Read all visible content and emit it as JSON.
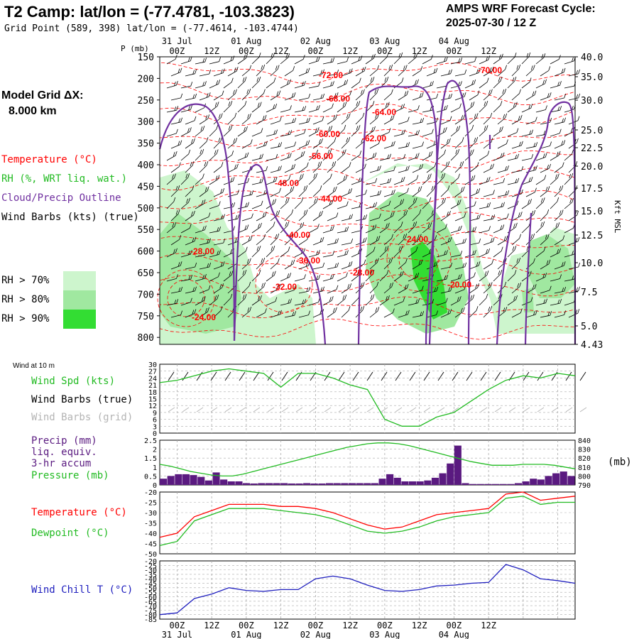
{
  "header": {
    "title": "T2 Camp:  lat/lon = (-77.4781, -103.3823)",
    "subtitle": "Grid Point (589, 398) lat/lon = (-77.4614, -103.4744)",
    "cycle_line1": "AMPS WRF Forecast Cycle:",
    "cycle_line2": "2025-07-30 / 12  Z"
  },
  "sidebar": {
    "model_grid_line1": "Model Grid ΔX:",
    "model_grid_line2": "8.000 km",
    "legend_temperature": "Temperature (°C)",
    "legend_rh": "RH (%, WRT liq. wat.)",
    "legend_cloud": "Cloud/Precip Outline",
    "legend_wind": "Wind Barbs (kts) (true)",
    "rh_70": "RH > 70%",
    "rh_80": "RH > 80%",
    "rh_90": "RH > 90%"
  },
  "colors": {
    "temperature": "#ff0000",
    "rh70": "#cdf5cd",
    "rh80": "#a0e8a0",
    "rh90": "#33dd33",
    "cloud": "#7030a0",
    "windspd": "#22bb22",
    "windchill": "#1e1ebe",
    "precip": "#5a1a80",
    "pressure": "#22bb22",
    "dewpoint": "#22bb22",
    "grid": "#aaaaaa"
  },
  "time_axis": {
    "date_labels": [
      "31 Jul",
      "01 Aug",
      "02 Aug",
      "03 Aug",
      "04 Aug"
    ],
    "hour_labels": [
      "00Z",
      "12Z",
      "00Z",
      "12Z",
      "00Z",
      "12Z",
      "00Z",
      "12Z",
      "00Z",
      "12Z"
    ]
  },
  "chart_data": [
    {
      "type": "heatmap",
      "panel": "cross_section",
      "ylabel_left": "P (mb)",
      "ylabel_right": "Kft MSL",
      "pressure_ticks": [
        "150",
        "200",
        "250",
        "300",
        "350",
        "400",
        "450",
        "500",
        "550",
        "600",
        "650",
        "700",
        "750",
        "800"
      ],
      "height_ticks": [
        "40.0",
        "35.0",
        "30.0",
        "25.0",
        "22.5",
        "20.0",
        "17.5",
        "15.0",
        "12.5",
        "10.0",
        "7.5",
        "5.0",
        "4.43"
      ],
      "temperature_labels": [
        "-72.00",
        "-70.00",
        "-68.00",
        "-64.00",
        "-60.00",
        "-62.00",
        "-56.00",
        "-48.00",
        "-44.00",
        "-40.00",
        "-36.00",
        "-28.00",
        "-28.00",
        "-32.00",
        "-24.00",
        "-24.00",
        "-20.00"
      ]
    },
    {
      "type": "line",
      "panel": "wind",
      "title": "Wind at 10 m",
      "series_label": "Wind Spd (kts)",
      "barbs_true_label": "Wind Barbs (true)",
      "barbs_grid_label": "Wind Barbs (grid)",
      "y_ticks": [
        "30",
        "27",
        "24",
        "21",
        "18",
        "15",
        "12",
        "9",
        "6",
        "3",
        "0"
      ],
      "ylim": [
        0,
        30
      ],
      "x_hours": [
        0,
        6,
        12,
        18,
        24,
        30,
        36,
        42,
        48,
        54,
        60,
        66,
        72,
        78,
        84,
        90,
        96,
        102,
        108,
        114,
        120,
        126,
        132,
        138,
        144
      ],
      "values": [
        22,
        23,
        25,
        27,
        28,
        27,
        26,
        20,
        26,
        26,
        24,
        21,
        19,
        6,
        3,
        3,
        7,
        9,
        14,
        19,
        23,
        25,
        24,
        26,
        25
      ]
    },
    {
      "type": "bar",
      "panel": "precip_pressure",
      "precip_label_lines": [
        "Precip (mm)",
        "liq. equiv.",
        "3-hr accum"
      ],
      "pressure_label": "Pressure (mb)",
      "right_unit": "(mb)",
      "left_ticks": [
        "2.5",
        "2",
        "1.5",
        "1",
        "0.5",
        "0"
      ],
      "right_ticks": [
        "840",
        "830",
        "820",
        "810",
        "800",
        "790"
      ],
      "precip_ylim": [
        0,
        2.5
      ],
      "pressure_ylim": [
        790,
        840
      ],
      "precip_values": [
        0.35,
        0.5,
        0.6,
        0.6,
        0.55,
        0.45,
        0.25,
        0.7,
        0.3,
        0.2,
        0.2,
        0.1,
        0.08,
        0.1,
        0.1,
        0.1,
        0.1,
        0.08,
        0.08,
        0.1,
        0.08,
        0.08,
        0.1,
        0.1,
        0.1,
        0.1,
        0.1,
        0.1,
        0.1,
        0.35,
        0.6,
        0.4,
        0.2,
        0.2,
        0.2,
        0.25,
        0.4,
        0.65,
        1.2,
        2.2,
        0.1,
        0.05,
        0.05,
        0.05,
        0.05,
        0.05,
        0.05,
        0.1,
        0.2,
        0.35,
        0.3,
        0.5,
        0.65,
        0.75,
        0.5
      ],
      "pressure_values": [
        813,
        811,
        808,
        805,
        803,
        801,
        800,
        800,
        802,
        805,
        808,
        811,
        814,
        817,
        820,
        823,
        826,
        829,
        832,
        834,
        836,
        837,
        837,
        836,
        834,
        831,
        828,
        825,
        822,
        819,
        816,
        814,
        812,
        812,
        812,
        813,
        813,
        813,
        812,
        810,
        808
      ]
    },
    {
      "type": "line",
      "panel": "temperature",
      "temperature_label": "Temperature (°C)",
      "dewpoint_label": "Dewpoint (°C)",
      "y_ticks": [
        "-20",
        "-25",
        "-30",
        "-35",
        "-40",
        "-45",
        "-50"
      ],
      "ylim": [
        -50,
        -20
      ],
      "x_hours": [
        0,
        6,
        12,
        18,
        24,
        30,
        36,
        42,
        48,
        54,
        60,
        66,
        72,
        78,
        84,
        90,
        96,
        102,
        108,
        114,
        120,
        126,
        132,
        138,
        144
      ],
      "temperature": [
        -42,
        -40,
        -32,
        -29,
        -26,
        -26,
        -26,
        -27,
        -27,
        -28,
        -30,
        -33,
        -36,
        -38,
        -37,
        -34,
        -31,
        -30,
        -29,
        -28,
        -21,
        -20,
        -24,
        -23,
        -22
      ],
      "dewpoint": [
        -46,
        -44,
        -34,
        -31,
        -28,
        -28,
        -28,
        -29,
        -30,
        -31,
        -33,
        -36,
        -39,
        -40,
        -39,
        -37,
        -34,
        -32,
        -31,
        -30,
        -23,
        -22,
        -26,
        -25,
        -25
      ]
    },
    {
      "type": "line",
      "panel": "windchill",
      "series_label": "Wind Chill T (°C)",
      "y_ticks": [
        "-20",
        "-25",
        "-30",
        "-35",
        "-40",
        "-45",
        "-50",
        "-55",
        "-60",
        "-65",
        "-70",
        "-75",
        "-80",
        "-85"
      ],
      "ylim": [
        -85,
        -20
      ],
      "x_hours": [
        0,
        6,
        12,
        18,
        24,
        30,
        36,
        42,
        48,
        54,
        60,
        66,
        72,
        78,
        84,
        90,
        96,
        102,
        108,
        114,
        120,
        126,
        132,
        138,
        144
      ],
      "values": [
        -80,
        -78,
        -62,
        -57,
        -50,
        -53,
        -54,
        -52,
        -52,
        -40,
        -37,
        -40,
        -47,
        -53,
        -54,
        -52,
        -48,
        -47,
        -45,
        -44,
        -24,
        -30,
        -40,
        -42,
        -45
      ]
    }
  ]
}
